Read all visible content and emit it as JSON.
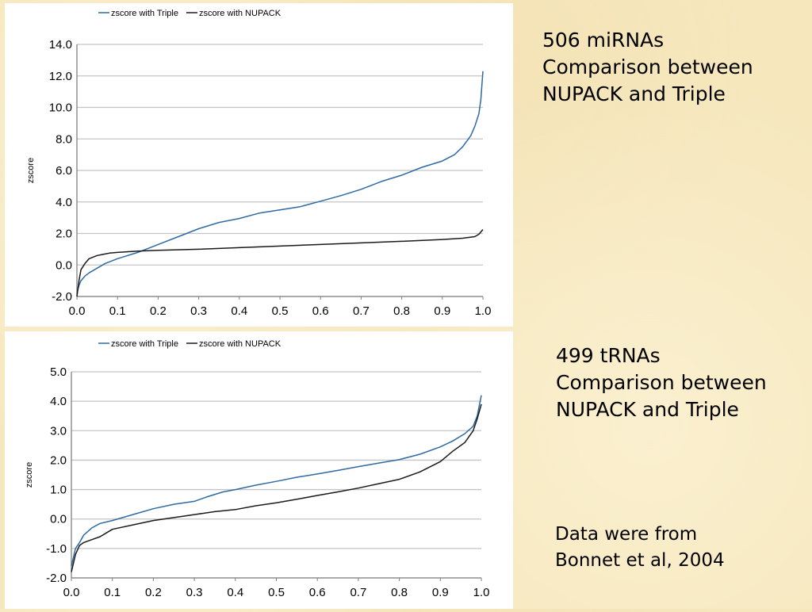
{
  "charts": [
    {
      "legend": {
        "triple": "zscore with Triple",
        "nupack": "zscore with NUPACK"
      },
      "ylabel": "zscore"
    },
    {
      "legend": {
        "triple": "zscore with Triple",
        "nupack": "zscore with NUPACK"
      },
      "ylabel": "zscore"
    }
  ],
  "notes": {
    "mirna": {
      "line1": "506 miRNAs",
      "line2": "Comparison between",
      "line3": "NUPACK and Triple"
    },
    "trna": {
      "line1": "499 tRNAs",
      "line2": "Comparison between",
      "line3": "NUPACK and Triple"
    },
    "source": {
      "line1": "Data were from",
      "line2": "Bonnet et al, 2004"
    }
  },
  "colors": {
    "triple": "#2e6aa2",
    "nupack": "#1a1a1a",
    "grid": "#c4c4c4",
    "axis": "#7f7f7f"
  },
  "chart_data": [
    {
      "type": "line",
      "title": "",
      "xlabel": "",
      "ylabel": "zscore",
      "xlim": [
        0,
        1
      ],
      "ylim": [
        -2,
        14
      ],
      "xticks": [
        "0.0",
        "0.1",
        "0.2",
        "0.3",
        "0.4",
        "0.5",
        "0.6",
        "0.7",
        "0.8",
        "0.9",
        "1.0"
      ],
      "yticks": [
        "-2.0",
        "0.0",
        "2.0",
        "4.0",
        "6.0",
        "8.0",
        "10.0",
        "12.0",
        "14.0"
      ],
      "grid": true,
      "legend_position": "top-center",
      "series": [
        {
          "name": "zscore with Triple",
          "color": "#2e6aa2",
          "x": [
            0,
            0.005,
            0.01,
            0.02,
            0.03,
            0.05,
            0.07,
            0.1,
            0.15,
            0.2,
            0.25,
            0.3,
            0.35,
            0.4,
            0.45,
            0.5,
            0.55,
            0.6,
            0.65,
            0.7,
            0.75,
            0.8,
            0.85,
            0.9,
            0.93,
            0.95,
            0.97,
            0.98,
            0.99,
            0.995,
            1.0
          ],
          "y": [
            -1.8,
            -1.3,
            -1.0,
            -0.7,
            -0.5,
            -0.2,
            0.1,
            0.4,
            0.8,
            1.3,
            1.8,
            2.3,
            2.7,
            2.95,
            3.3,
            3.5,
            3.7,
            4.05,
            4.4,
            4.8,
            5.3,
            5.7,
            6.2,
            6.6,
            7.0,
            7.5,
            8.2,
            8.8,
            9.6,
            10.5,
            12.3
          ]
        },
        {
          "name": "zscore with NUPACK",
          "color": "#1a1a1a",
          "x": [
            0,
            0.005,
            0.01,
            0.02,
            0.03,
            0.05,
            0.08,
            0.1,
            0.15,
            0.2,
            0.3,
            0.4,
            0.5,
            0.6,
            0.7,
            0.8,
            0.9,
            0.95,
            0.98,
            0.99,
            1.0
          ],
          "y": [
            -2.0,
            -1.0,
            -0.3,
            0.1,
            0.4,
            0.6,
            0.75,
            0.8,
            0.88,
            0.93,
            1.0,
            1.1,
            1.2,
            1.3,
            1.4,
            1.5,
            1.62,
            1.7,
            1.8,
            1.95,
            2.25
          ]
        }
      ]
    },
    {
      "type": "line",
      "title": "",
      "xlabel": "",
      "ylabel": "zscore",
      "xlim": [
        0,
        1
      ],
      "ylim": [
        -2,
        5
      ],
      "xticks": [
        "0.0",
        "0.1",
        "0.2",
        "0.3",
        "0.4",
        "0.5",
        "0.6",
        "0.7",
        "0.8",
        "0.9",
        "1.0"
      ],
      "yticks": [
        "-2.0",
        "-1.0",
        "0.0",
        "1.0",
        "2.0",
        "3.0",
        "4.0",
        "5.0"
      ],
      "grid": true,
      "legend_position": "top-center",
      "series": [
        {
          "name": "zscore with Triple",
          "color": "#2e6aa2",
          "x": [
            0,
            0.005,
            0.01,
            0.02,
            0.03,
            0.05,
            0.07,
            0.1,
            0.15,
            0.2,
            0.25,
            0.3,
            0.33,
            0.37,
            0.4,
            0.45,
            0.5,
            0.55,
            0.6,
            0.65,
            0.7,
            0.75,
            0.8,
            0.85,
            0.9,
            0.93,
            0.96,
            0.98,
            0.99,
            1.0
          ],
          "y": [
            -1.6,
            -1.3,
            -1.0,
            -0.8,
            -0.55,
            -0.3,
            -0.15,
            -0.05,
            0.15,
            0.35,
            0.5,
            0.6,
            0.75,
            0.92,
            1.0,
            1.15,
            1.28,
            1.42,
            1.53,
            1.65,
            1.78,
            1.9,
            2.02,
            2.2,
            2.45,
            2.65,
            2.9,
            3.15,
            3.5,
            4.2
          ]
        },
        {
          "name": "zscore with NUPACK",
          "color": "#1a1a1a",
          "x": [
            0,
            0.005,
            0.01,
            0.02,
            0.03,
            0.05,
            0.07,
            0.1,
            0.15,
            0.2,
            0.25,
            0.3,
            0.35,
            0.4,
            0.45,
            0.5,
            0.55,
            0.6,
            0.65,
            0.7,
            0.75,
            0.8,
            0.85,
            0.9,
            0.93,
            0.96,
            0.98,
            0.99,
            1.0
          ],
          "y": [
            -1.8,
            -1.5,
            -1.2,
            -0.9,
            -0.8,
            -0.7,
            -0.6,
            -0.35,
            -0.2,
            -0.05,
            0.05,
            0.15,
            0.25,
            0.32,
            0.45,
            0.55,
            0.67,
            0.8,
            0.92,
            1.05,
            1.2,
            1.35,
            1.6,
            1.95,
            2.3,
            2.6,
            3.0,
            3.4,
            3.9
          ]
        }
      ]
    }
  ]
}
